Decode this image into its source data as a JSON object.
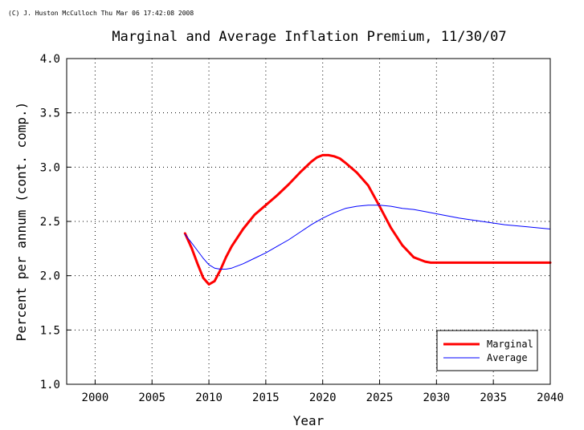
{
  "credit": "(C) J. Huston McCulloch Thu Mar 06 17:42:08 2008",
  "chart_data": {
    "type": "line",
    "title": "Marginal and Average Inflation Premium, 11/30/07",
    "xlabel": "Year",
    "ylabel": "Percent per annum (cont. comp.)",
    "xlim": [
      1997.5,
      2040
    ],
    "ylim": [
      1.0,
      4.0
    ],
    "xticks": [
      2000,
      2005,
      2010,
      2015,
      2020,
      2025,
      2030,
      2035,
      2040
    ],
    "yticks": [
      1.0,
      1.5,
      2.0,
      2.5,
      3.0,
      3.5,
      4.0
    ],
    "xtick_labels": [
      "2000",
      "2005",
      "2010",
      "2015",
      "2020",
      "2025",
      "2030",
      "2035",
      "2040"
    ],
    "ytick_labels": [
      "1.0",
      "1.5",
      "2.0",
      "2.5",
      "3.0",
      "3.5",
      "4.0"
    ],
    "grid": true,
    "legend_position": "bottom-right",
    "series": [
      {
        "name": "Marginal",
        "color": "#ff0000",
        "x": [
          2007.9,
          2008.5,
          2009.0,
          2009.5,
          2010.0,
          2010.5,
          2011.0,
          2011.5,
          2012.0,
          2013.0,
          2014.0,
          2015.0,
          2016.0,
          2017.0,
          2018.0,
          2019.0,
          2019.5,
          2020.0,
          2020.5,
          2021.0,
          2021.5,
          2022.0,
          2023.0,
          2024.0,
          2025.0,
          2026.0,
          2027.0,
          2028.0,
          2029.0,
          2029.5,
          2030.0,
          2035.0,
          2040.0
        ],
        "y": [
          2.39,
          2.25,
          2.11,
          1.98,
          1.92,
          1.95,
          2.05,
          2.17,
          2.27,
          2.43,
          2.56,
          2.65,
          2.74,
          2.84,
          2.95,
          3.05,
          3.09,
          3.11,
          3.11,
          3.1,
          3.08,
          3.04,
          2.95,
          2.83,
          2.64,
          2.44,
          2.28,
          2.17,
          2.13,
          2.12,
          2.12,
          2.12,
          2.12
        ]
      },
      {
        "name": "Average",
        "color": "#0000ff",
        "x": [
          2007.9,
          2008.5,
          2009.0,
          2009.5,
          2010.0,
          2010.5,
          2011.0,
          2011.5,
          2012.0,
          2013.0,
          2014.0,
          2015.0,
          2016.0,
          2017.0,
          2018.0,
          2019.0,
          2020.0,
          2021.0,
          2022.0,
          2023.0,
          2024.0,
          2025.0,
          2026.0,
          2027.0,
          2028.0,
          2029.0,
          2030.0,
          2032.0,
          2034.0,
          2036.0,
          2038.0,
          2040.0
        ],
        "y": [
          2.38,
          2.3,
          2.23,
          2.16,
          2.1,
          2.07,
          2.06,
          2.06,
          2.07,
          2.11,
          2.16,
          2.21,
          2.27,
          2.33,
          2.4,
          2.47,
          2.53,
          2.58,
          2.62,
          2.64,
          2.65,
          2.65,
          2.64,
          2.62,
          2.61,
          2.59,
          2.57,
          2.53,
          2.5,
          2.47,
          2.45,
          2.43
        ]
      }
    ]
  }
}
